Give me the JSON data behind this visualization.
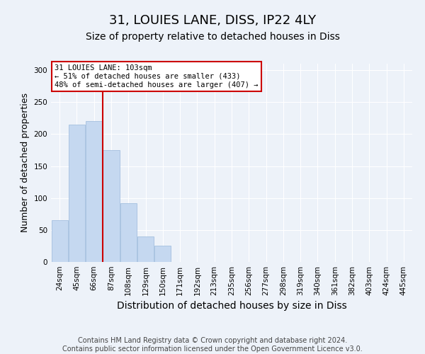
{
  "title1": "31, LOUIES LANE, DISS, IP22 4LY",
  "title2": "Size of property relative to detached houses in Diss",
  "xlabel": "Distribution of detached houses by size in Diss",
  "ylabel": "Number of detached properties",
  "bar_labels": [
    "24sqm",
    "45sqm",
    "66sqm",
    "87sqm",
    "108sqm",
    "129sqm",
    "150sqm",
    "171sqm",
    "192sqm",
    "213sqm",
    "235sqm",
    "256sqm",
    "277sqm",
    "298sqm",
    "319sqm",
    "340sqm",
    "361sqm",
    "382sqm",
    "403sqm",
    "424sqm",
    "445sqm"
  ],
  "bar_values": [
    65,
    215,
    220,
    175,
    92,
    40,
    25,
    0,
    0,
    0,
    0,
    0,
    0,
    0,
    0,
    0,
    0,
    0,
    0,
    0,
    0
  ],
  "bar_color": "#c5d8f0",
  "bar_edge_color": "#9ab8db",
  "vline_pos": 2.5,
  "vline_color": "#cc0000",
  "annotation_text": "31 LOUIES LANE: 103sqm\n← 51% of detached houses are smaller (433)\n48% of semi-detached houses are larger (407) →",
  "annotation_box_color": "#ffffff",
  "annotation_box_edge": "#cc0000",
  "ylim": [
    0,
    310
  ],
  "yticks": [
    0,
    50,
    100,
    150,
    200,
    250,
    300
  ],
  "background_color": "#edf2f9",
  "axes_background": "#edf2f9",
  "footer": "Contains HM Land Registry data © Crown copyright and database right 2024.\nContains public sector information licensed under the Open Government Licence v3.0.",
  "title1_fontsize": 13,
  "title2_fontsize": 10,
  "xlabel_fontsize": 10,
  "ylabel_fontsize": 9,
  "tick_fontsize": 7.5,
  "footer_fontsize": 7
}
